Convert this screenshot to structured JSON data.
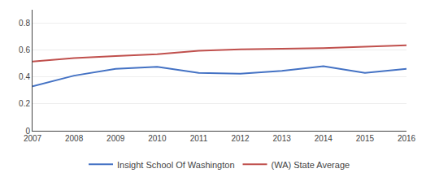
{
  "chart_data": {
    "type": "line",
    "x": [
      2007,
      2008,
      2009,
      2010,
      2011,
      2012,
      2013,
      2014,
      2015,
      2016
    ],
    "series": [
      {
        "name": "Insight School Of Washington",
        "color": "#4472C4",
        "values": [
          0.33,
          0.41,
          0.46,
          0.475,
          0.43,
          0.425,
          0.445,
          0.48,
          0.43,
          0.46
        ]
      },
      {
        "name": "(WA) State Average",
        "color": "#C0504D",
        "values": [
          0.515,
          0.54,
          0.555,
          0.57,
          0.595,
          0.605,
          0.61,
          0.615,
          0.625,
          0.635
        ]
      }
    ],
    "xlim": [
      2007,
      2016
    ],
    "xticks": [
      2007,
      2008,
      2009,
      2010,
      2011,
      2012,
      2013,
      2014,
      2015,
      2016
    ],
    "ylim": [
      0,
      0.9
    ],
    "yticks": [
      0,
      0.2,
      0.4,
      0.6,
      0.8
    ],
    "grid": "y",
    "legend": "bottom"
  }
}
